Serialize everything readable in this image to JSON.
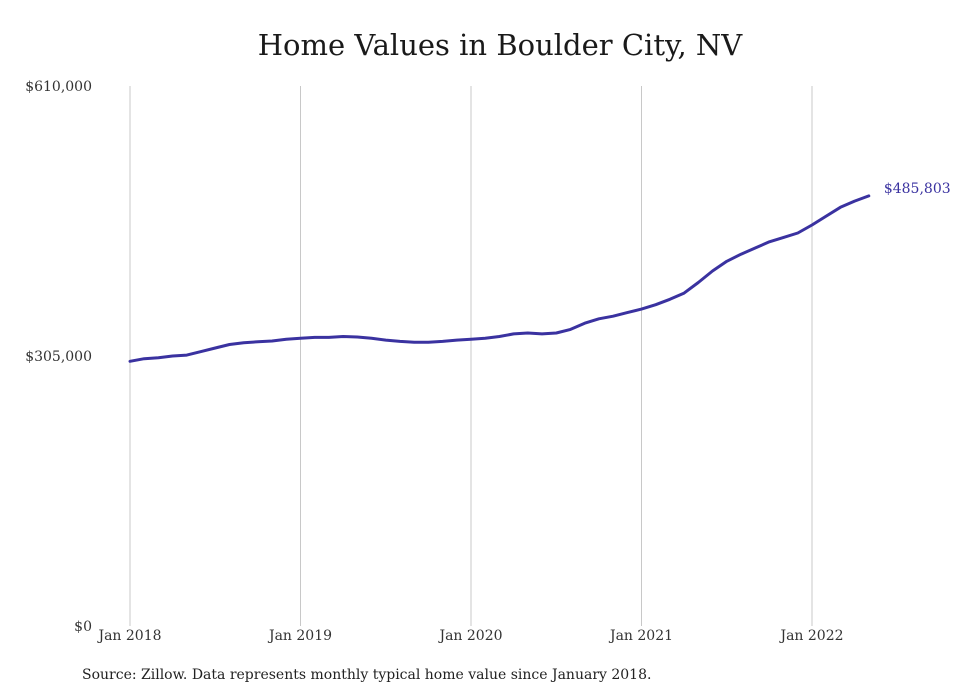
{
  "chart_data": {
    "type": "line",
    "title": "Home Values in Boulder City, NV",
    "xlabel": "",
    "ylabel": "",
    "y_ticks": [
      "$0",
      "$305,000",
      "$610,000"
    ],
    "y_tick_values": [
      0,
      305000,
      610000
    ],
    "ylim": [
      0,
      610000
    ],
    "x_ticks": [
      "Jan 2018",
      "Jan 2019",
      "Jan 2020",
      "Jan 2021",
      "Jan 2022"
    ],
    "x_tick_dates": [
      "2018-01",
      "2019-01",
      "2020-01",
      "2021-01",
      "2022-01"
    ],
    "x_range": [
      "2018-01",
      "2022-05"
    ],
    "grid": "vertical",
    "end_label": "$485,803",
    "line_color": "#3a32a0",
    "series": [
      {
        "x": [
          "2018-01",
          "2018-02",
          "2018-03",
          "2018-04",
          "2018-05",
          "2018-06",
          "2018-07",
          "2018-08",
          "2018-09",
          "2018-10",
          "2018-11",
          "2018-12",
          "2019-01",
          "2019-02",
          "2019-03",
          "2019-04",
          "2019-05",
          "2019-06",
          "2019-07",
          "2019-08",
          "2019-09",
          "2019-10",
          "2019-11",
          "2019-12",
          "2020-01",
          "2020-02",
          "2020-03",
          "2020-04",
          "2020-05",
          "2020-06",
          "2020-07",
          "2020-08",
          "2020-09",
          "2020-10",
          "2020-11",
          "2020-12",
          "2021-01",
          "2021-02",
          "2021-03",
          "2021-04",
          "2021-05",
          "2021-06",
          "2021-07",
          "2021-08",
          "2021-09",
          "2021-10",
          "2021-11",
          "2021-12",
          "2022-01",
          "2022-02",
          "2022-03",
          "2022-04",
          "2022-05"
        ],
        "values": [
          299000,
          302000,
          303000,
          305000,
          306000,
          310000,
          314000,
          318000,
          320000,
          321000,
          322000,
          324000,
          325000,
          326000,
          326000,
          327000,
          326500,
          325000,
          323000,
          321500,
          320500,
          320500,
          321500,
          323000,
          324000,
          325000,
          327000,
          330000,
          331000,
          330000,
          331000,
          335000,
          342000,
          347000,
          350000,
          354000,
          358000,
          363000,
          369000,
          376000,
          388000,
          401000,
          412000,
          420000,
          427000,
          434000,
          439000,
          444000,
          453000,
          463000,
          473000,
          480000,
          485803
        ]
      }
    ]
  },
  "source": "Source: Zillow. Data represents monthly typical home value since January 2018."
}
